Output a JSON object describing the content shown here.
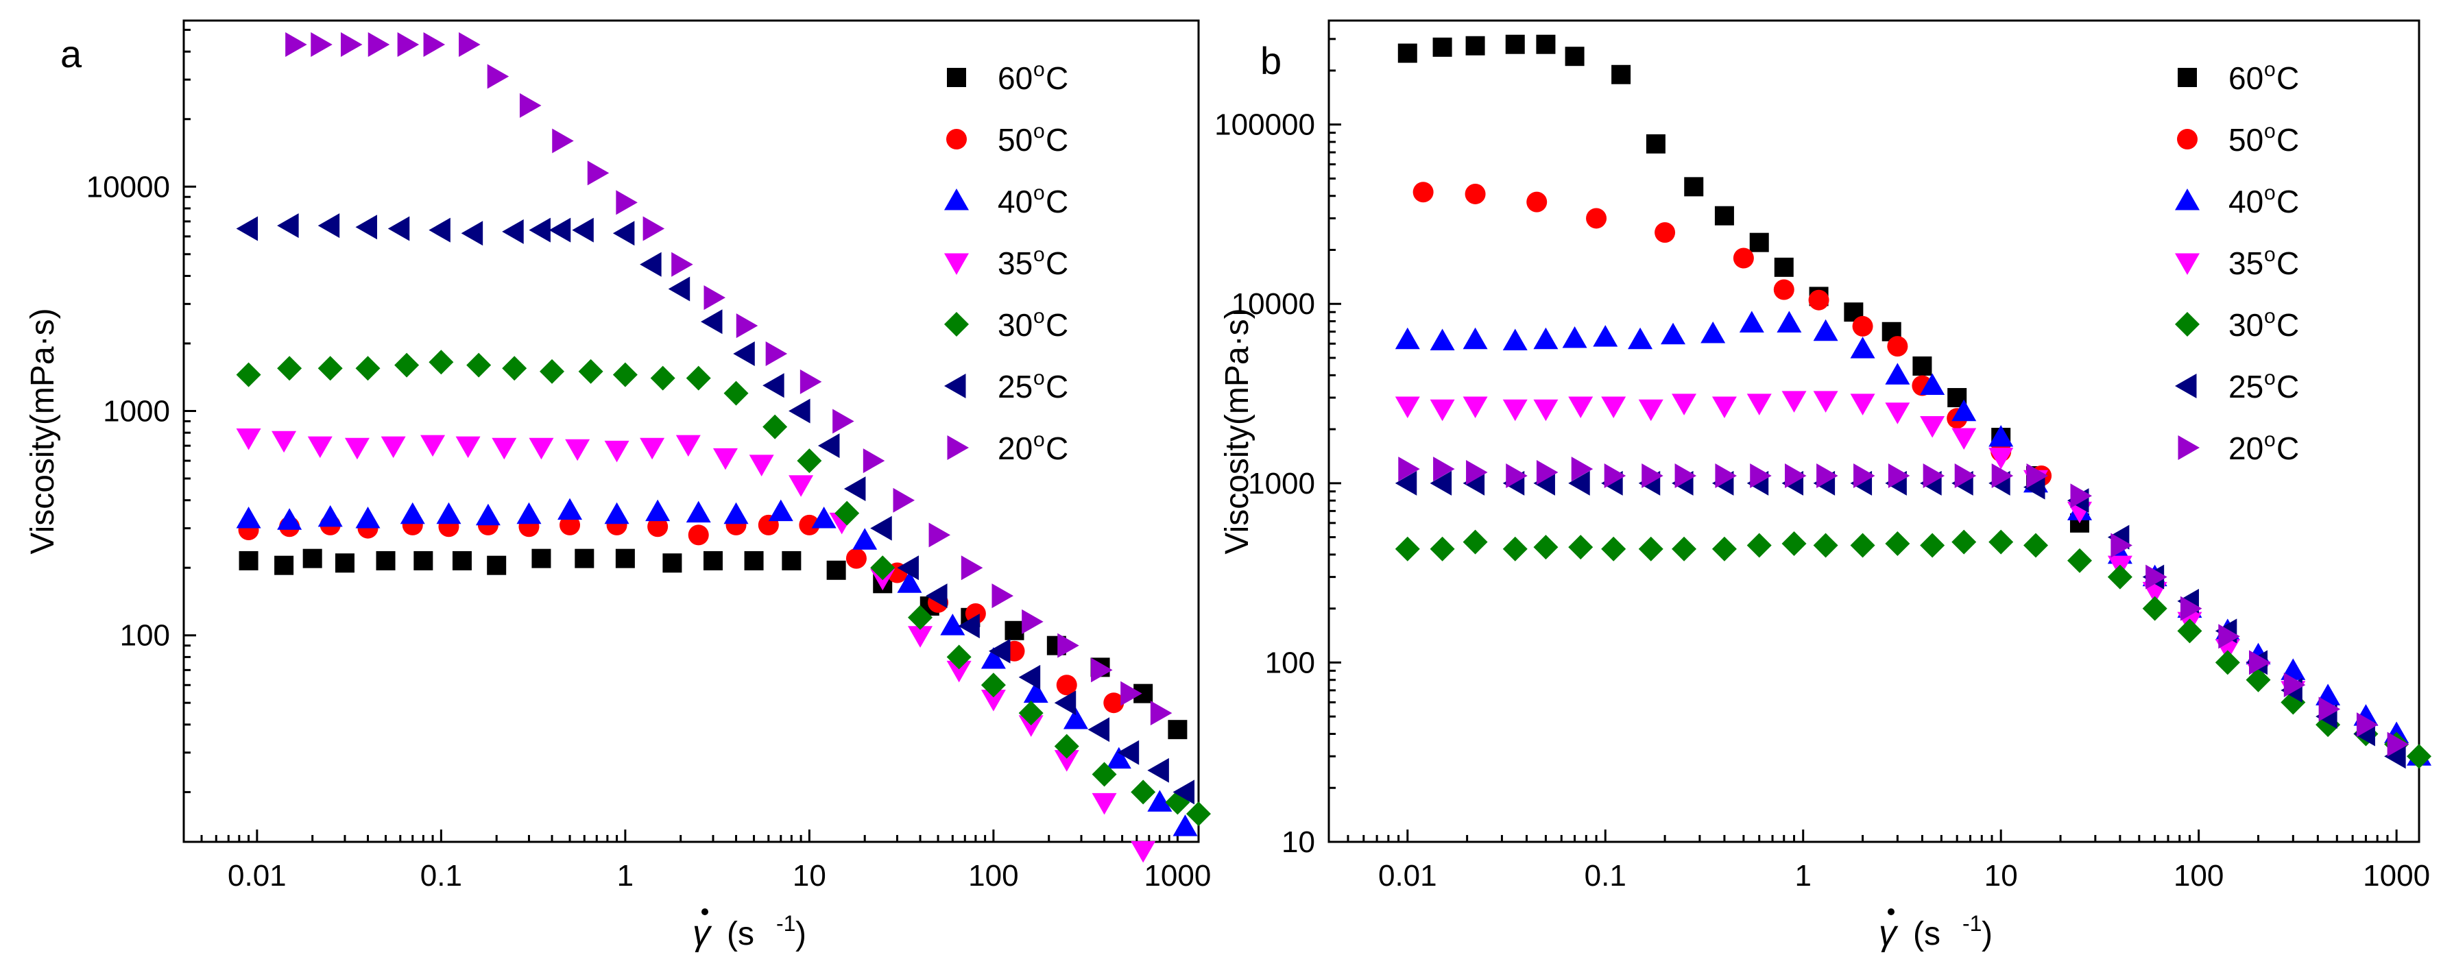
{
  "figure": {
    "description_hidden": false
  },
  "chart_data": [
    {
      "type": "scatter",
      "panel_label": "a",
      "xscale": "log",
      "yscale": "log",
      "xlim": [
        0.004,
        1300
      ],
      "ylim": [
        12,
        55000
      ],
      "xticks": [
        0.01,
        0.1,
        1,
        10,
        100,
        1000
      ],
      "xtick_labels": [
        "0.01",
        "0.1",
        "1",
        "10",
        "100",
        "1000"
      ],
      "yticks": [
        100,
        1000,
        10000
      ],
      "ytick_labels": [
        "100",
        "1000",
        "10000"
      ],
      "xlabel": "γ̇ (s⁻¹)",
      "xlabel_symbol": "γ",
      "xlabel_unit": "(s",
      "xlabel_exp": "-1",
      "xlabel_close": ")",
      "ylabel": "Viscosity(mPa·s)",
      "legend_position": "top-right",
      "series": [
        {
          "name": "60°C",
          "name_main": "60",
          "name_sup": "o",
          "name_tail": "C",
          "marker": "square",
          "color": "#000000",
          "x": [
            0.009,
            0.014,
            0.02,
            0.03,
            0.05,
            0.08,
            0.13,
            0.2,
            0.35,
            0.6,
            1.0,
            1.8,
            3.0,
            5.0,
            8.0,
            14,
            25,
            45,
            75,
            130,
            220,
            380,
            650,
            1000
          ],
          "y": [
            215,
            205,
            220,
            210,
            215,
            215,
            215,
            205,
            220,
            220,
            220,
            210,
            215,
            215,
            215,
            195,
            170,
            135,
            120,
            105,
            90,
            72,
            55,
            38
          ]
        },
        {
          "name": "50°C",
          "name_main": "50",
          "name_sup": "o",
          "name_tail": "C",
          "marker": "circle",
          "color": "#ff0000",
          "x": [
            0.009,
            0.015,
            0.025,
            0.04,
            0.07,
            0.11,
            0.18,
            0.3,
            0.5,
            0.9,
            1.5,
            2.5,
            4.0,
            6.0,
            10,
            18,
            30,
            50,
            80,
            130,
            250,
            450
          ],
          "y": [
            295,
            305,
            310,
            300,
            310,
            305,
            310,
            305,
            310,
            310,
            305,
            280,
            310,
            310,
            310,
            220,
            190,
            140,
            125,
            85,
            60,
            50
          ]
        },
        {
          "name": "40°C",
          "name_main": "40",
          "name_sup": "o",
          "name_tail": "C",
          "marker": "triangle-up",
          "color": "#0000ff",
          "x": [
            0.009,
            0.015,
            0.025,
            0.04,
            0.07,
            0.11,
            0.18,
            0.3,
            0.5,
            0.9,
            1.5,
            2.5,
            4.0,
            7.0,
            12,
            20,
            35,
            60,
            100,
            170,
            280,
            480,
            800,
            1100
          ],
          "y": [
            330,
            325,
            335,
            330,
            345,
            345,
            340,
            345,
            360,
            345,
            355,
            350,
            345,
            355,
            330,
            265,
            170,
            110,
            78,
            55,
            42,
            28,
            18,
            14
          ]
        },
        {
          "name": "35°C",
          "name_main": "35",
          "name_sup": "o",
          "name_tail": "C",
          "marker": "triangle-down",
          "color": "#ff00ff",
          "x": [
            0.009,
            0.014,
            0.022,
            0.035,
            0.055,
            0.09,
            0.14,
            0.22,
            0.35,
            0.55,
            0.9,
            1.4,
            2.2,
            3.5,
            5.5,
            9,
            15,
            25,
            40,
            65,
            100,
            160,
            250,
            400,
            650
          ],
          "y": [
            760,
            740,
            700,
            690,
            700,
            710,
            700,
            690,
            690,
            680,
            670,
            690,
            710,
            620,
            580,
            470,
            320,
            180,
            100,
            70,
            52,
            40,
            28,
            18,
            11
          ]
        },
        {
          "name": "30°C",
          "name_main": "30",
          "name_sup": "o",
          "name_tail": "C",
          "marker": "diamond",
          "color": "#008000",
          "x": [
            0.009,
            0.015,
            0.025,
            0.04,
            0.065,
            0.1,
            0.16,
            0.25,
            0.4,
            0.65,
            1.0,
            1.6,
            2.5,
            4.0,
            6.5,
            10,
            16,
            25,
            40,
            65,
            100,
            160,
            250,
            400,
            650,
            1000,
            1300
          ],
          "y": [
            1450,
            1550,
            1550,
            1550,
            1600,
            1650,
            1600,
            1550,
            1500,
            1500,
            1450,
            1400,
            1400,
            1200,
            850,
            600,
            350,
            200,
            120,
            80,
            60,
            45,
            32,
            24,
            20,
            18,
            16
          ]
        },
        {
          "name": "25°C",
          "name_main": "25",
          "name_sup": "o",
          "name_tail": "C",
          "marker": "triangle-left",
          "color": "#000080",
          "x": [
            0.009,
            0.015,
            0.025,
            0.04,
            0.06,
            0.1,
            0.15,
            0.25,
            0.35,
            0.45,
            0.6,
            1.0,
            1.4,
            2.0,
            3.0,
            4.5,
            6.5,
            9,
            13,
            18,
            25,
            35,
            50,
            75,
            110,
            160,
            250,
            380,
            550,
            800,
            1100
          ],
          "y": [
            6500,
            6700,
            6700,
            6600,
            6500,
            6400,
            6200,
            6300,
            6400,
            6400,
            6400,
            6200,
            4500,
            3500,
            2500,
            1800,
            1300,
            1000,
            700,
            450,
            300,
            200,
            150,
            110,
            85,
            65,
            50,
            38,
            30,
            25,
            20
          ]
        },
        {
          "name": "20°C",
          "name_main": "20",
          "name_sup": "o",
          "name_tail": "C",
          "marker": "triangle-right",
          "color": "#9900cc",
          "x": [
            0.016,
            0.022,
            0.032,
            0.045,
            0.065,
            0.09,
            0.14,
            0.2,
            0.3,
            0.45,
            0.7,
            1.0,
            1.4,
            2.0,
            3.0,
            4.5,
            6.5,
            10,
            15,
            22,
            32,
            50,
            75,
            110,
            160,
            250,
            380,
            550,
            800
          ],
          "y": [
            43000,
            43000,
            43000,
            43000,
            43000,
            43000,
            43000,
            31000,
            23000,
            16000,
            11500,
            8500,
            6500,
            4500,
            3200,
            2400,
            1800,
            1350,
            900,
            600,
            400,
            280,
            200,
            150,
            115,
            90,
            70,
            55,
            45
          ]
        }
      ]
    },
    {
      "type": "scatter",
      "panel_label": "b",
      "xscale": "log",
      "yscale": "log",
      "xlim": [
        0.004,
        1300
      ],
      "ylim": [
        10,
        380000
      ],
      "xticks": [
        0.01,
        0.1,
        1,
        10,
        100,
        1000
      ],
      "xtick_labels": [
        "0.01",
        "0.1",
        "1",
        "10",
        "100",
        "1000"
      ],
      "yticks": [
        10,
        100,
        1000,
        10000,
        100000
      ],
      "ytick_labels": [
        "10",
        "100",
        "1000",
        "10000",
        "100000"
      ],
      "xlabel": "γ̇ (s⁻¹)",
      "xlabel_symbol": "γ",
      "xlabel_unit": "(s",
      "xlabel_exp": "-1",
      "xlabel_close": ")",
      "ylabel": "Viscosity(mPa·s)",
      "legend_position": "top-right",
      "series": [
        {
          "name": "60°C",
          "name_main": "60",
          "name_sup": "o",
          "name_tail": "C",
          "marker": "square",
          "color": "#000000",
          "x": [
            0.01,
            0.015,
            0.022,
            0.035,
            0.05,
            0.07,
            0.12,
            0.18,
            0.28,
            0.4,
            0.6,
            0.8,
            1.2,
            1.8,
            2.8,
            4,
            6,
            10,
            15,
            25
          ],
          "y": [
            250000,
            270000,
            275000,
            280000,
            280000,
            240000,
            190000,
            78000,
            45000,
            31000,
            22000,
            16000,
            11000,
            9000,
            7000,
            4500,
            3000,
            1800,
            1100,
            600
          ]
        },
        {
          "name": "50°C",
          "name_main": "50",
          "name_sup": "o",
          "name_tail": "C",
          "marker": "circle",
          "color": "#ff0000",
          "x": [
            0.012,
            0.022,
            0.045,
            0.09,
            0.2,
            0.5,
            0.8,
            1.2,
            2,
            3,
            4,
            6,
            10,
            16
          ],
          "y": [
            42000,
            41000,
            37000,
            30000,
            25000,
            18000,
            12000,
            10500,
            7500,
            5800,
            3500,
            2300,
            1500,
            1100
          ]
        },
        {
          "name": "40°C",
          "name_main": "40",
          "name_sup": "o",
          "name_tail": "C",
          "marker": "triangle-up",
          "color": "#0000ff",
          "x": [
            0.01,
            0.015,
            0.022,
            0.035,
            0.05,
            0.07,
            0.1,
            0.15,
            0.22,
            0.35,
            0.55,
            0.85,
            1.3,
            2,
            3,
            4.5,
            6.5,
            10,
            15,
            25,
            40,
            60,
            90,
            140,
            200,
            300,
            450,
            700,
            1000,
            1300
          ],
          "y": [
            6300,
            6200,
            6300,
            6200,
            6300,
            6400,
            6500,
            6300,
            6700,
            6800,
            7800,
            7800,
            7000,
            5600,
            4000,
            3500,
            2500,
            1800,
            1000,
            700,
            400,
            300,
            200,
            150,
            110,
            90,
            65,
            50,
            40,
            30
          ]
        },
        {
          "name": "35°C",
          "name_main": "35",
          "name_sup": "o",
          "name_tail": "C",
          "marker": "triangle-down",
          "color": "#ff00ff",
          "x": [
            0.01,
            0.015,
            0.022,
            0.035,
            0.05,
            0.075,
            0.11,
            0.17,
            0.25,
            0.4,
            0.6,
            0.9,
            1.3,
            2,
            3,
            4.5,
            6.5,
            10,
            15,
            25,
            40,
            60,
            90,
            140,
            200,
            300
          ],
          "y": [
            2700,
            2600,
            2700,
            2600,
            2600,
            2700,
            2700,
            2600,
            2800,
            2700,
            2800,
            2900,
            2900,
            2800,
            2500,
            2100,
            1800,
            1400,
            1050,
            700,
            350,
            250,
            170,
            120,
            90,
            70
          ]
        },
        {
          "name": "30°C",
          "name_main": "30",
          "name_sup": "o",
          "name_tail": "C",
          "marker": "diamond",
          "color": "#008000",
          "x": [
            0.01,
            0.015,
            0.022,
            0.035,
            0.05,
            0.075,
            0.11,
            0.17,
            0.25,
            0.4,
            0.6,
            0.9,
            1.3,
            2,
            3,
            4.5,
            6.5,
            10,
            15,
            25,
            40,
            60,
            90,
            140,
            200,
            300,
            450,
            700,
            1000,
            1300
          ],
          "y": [
            430,
            430,
            470,
            430,
            440,
            440,
            430,
            430,
            430,
            430,
            450,
            460,
            450,
            450,
            460,
            450,
            470,
            470,
            450,
            370,
            300,
            200,
            150,
            100,
            80,
            60,
            45,
            40,
            35,
            30
          ]
        },
        {
          "name": "25°C",
          "name_main": "25",
          "name_sup": "o",
          "name_tail": "C",
          "marker": "triangle-left",
          "color": "#000080",
          "x": [
            0.01,
            0.015,
            0.022,
            0.035,
            0.05,
            0.075,
            0.11,
            0.17,
            0.25,
            0.4,
            0.6,
            0.9,
            1.3,
            2,
            3,
            4.5,
            6.5,
            10,
            15,
            25,
            40,
            60,
            90,
            140,
            200,
            300,
            450,
            700,
            1000
          ],
          "y": [
            1000,
            1000,
            1000,
            1000,
            1000,
            1000,
            1000,
            1000,
            1000,
            1000,
            1000,
            1000,
            1000,
            1000,
            1000,
            1000,
            1000,
            1000,
            950,
            800,
            500,
            300,
            220,
            150,
            100,
            70,
            50,
            40,
            30
          ]
        },
        {
          "name": "20°C",
          "name_main": "20",
          "name_sup": "o",
          "name_tail": "C",
          "marker": "triangle-right",
          "color": "#9900cc",
          "x": [
            0.01,
            0.015,
            0.022,
            0.035,
            0.05,
            0.075,
            0.11,
            0.17,
            0.25,
            0.4,
            0.6,
            0.9,
            1.3,
            2,
            3,
            4.5,
            6.5,
            10,
            15,
            25,
            40,
            60,
            90,
            140,
            200,
            300,
            450,
            700,
            1000
          ],
          "y": [
            1200,
            1200,
            1150,
            1100,
            1150,
            1200,
            1100,
            1100,
            1100,
            1100,
            1100,
            1100,
            1100,
            1100,
            1100,
            1100,
            1100,
            1100,
            1100,
            850,
            450,
            300,
            200,
            140,
            100,
            75,
            55,
            45,
            35
          ]
        }
      ]
    }
  ]
}
